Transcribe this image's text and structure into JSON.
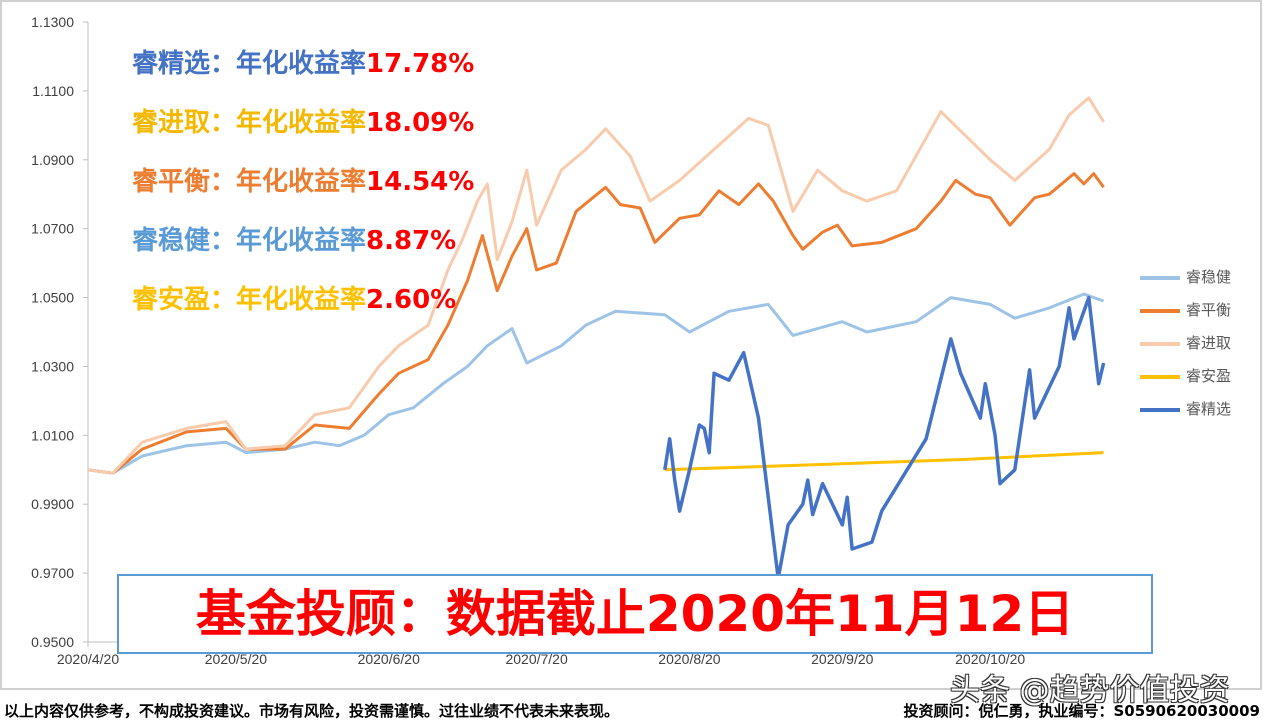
{
  "chart_data": {
    "type": "line",
    "ylim": [
      0.95,
      1.13
    ],
    "yticks": [
      "1.1300",
      "1.1100",
      "1.0900",
      "1.0700",
      "1.0500",
      "1.0300",
      "1.0100",
      "0.9900",
      "0.9700",
      "0.9500"
    ],
    "xticks": [
      "2020/4/20",
      "2020/5/20",
      "2020/6/20",
      "2020/7/20",
      "2020/8/20",
      "2020/9/20",
      "2020/10/20"
    ],
    "grid": false,
    "legend_position": "right",
    "series": [
      {
        "name": "睿稳健",
        "color": "#9dc3e6",
        "points": [
          [
            "2020-04-20",
            1.0
          ],
          [
            "2020-04-25",
            0.999
          ],
          [
            "2020-05-01",
            1.004
          ],
          [
            "2020-05-10",
            1.007
          ],
          [
            "2020-05-18",
            1.008
          ],
          [
            "2020-05-22",
            1.005
          ],
          [
            "2020-05-30",
            1.006
          ],
          [
            "2020-06-05",
            1.008
          ],
          [
            "2020-06-10",
            1.007
          ],
          [
            "2020-06-15",
            1.01
          ],
          [
            "2020-06-20",
            1.016
          ],
          [
            "2020-06-25",
            1.018
          ],
          [
            "2020-07-01",
            1.025
          ],
          [
            "2020-07-06",
            1.03
          ],
          [
            "2020-07-10",
            1.036
          ],
          [
            "2020-07-15",
            1.041
          ],
          [
            "2020-07-18",
            1.031
          ],
          [
            "2020-07-25",
            1.036
          ],
          [
            "2020-07-30",
            1.042
          ],
          [
            "2020-08-05",
            1.046
          ],
          [
            "2020-08-15",
            1.045
          ],
          [
            "2020-08-20",
            1.04
          ],
          [
            "2020-08-28",
            1.046
          ],
          [
            "2020-09-05",
            1.048
          ],
          [
            "2020-09-10",
            1.039
          ],
          [
            "2020-09-20",
            1.043
          ],
          [
            "2020-09-25",
            1.04
          ],
          [
            "2020-10-05",
            1.043
          ],
          [
            "2020-10-12",
            1.05
          ],
          [
            "2020-10-20",
            1.048
          ],
          [
            "2020-10-25",
            1.044
          ],
          [
            "2020-11-01",
            1.047
          ],
          [
            "2020-11-08",
            1.051
          ],
          [
            "2020-11-12",
            1.049
          ]
        ]
      },
      {
        "name": "睿平衡",
        "color": "#ed7d31",
        "points": [
          [
            "2020-04-20",
            1.0
          ],
          [
            "2020-04-25",
            0.999
          ],
          [
            "2020-05-01",
            1.006
          ],
          [
            "2020-05-10",
            1.011
          ],
          [
            "2020-05-18",
            1.012
          ],
          [
            "2020-05-22",
            1.006
          ],
          [
            "2020-05-30",
            1.006
          ],
          [
            "2020-06-05",
            1.013
          ],
          [
            "2020-06-12",
            1.012
          ],
          [
            "2020-06-18",
            1.022
          ],
          [
            "2020-06-22",
            1.028
          ],
          [
            "2020-06-28",
            1.032
          ],
          [
            "2020-07-02",
            1.042
          ],
          [
            "2020-07-06",
            1.055
          ],
          [
            "2020-07-09",
            1.068
          ],
          [
            "2020-07-12",
            1.052
          ],
          [
            "2020-07-15",
            1.062
          ],
          [
            "2020-07-18",
            1.07
          ],
          [
            "2020-07-20",
            1.058
          ],
          [
            "2020-07-24",
            1.06
          ],
          [
            "2020-07-28",
            1.075
          ],
          [
            "2020-08-03",
            1.082
          ],
          [
            "2020-08-06",
            1.077
          ],
          [
            "2020-08-10",
            1.076
          ],
          [
            "2020-08-13",
            1.066
          ],
          [
            "2020-08-18",
            1.073
          ],
          [
            "2020-08-22",
            1.074
          ],
          [
            "2020-08-26",
            1.081
          ],
          [
            "2020-08-30",
            1.077
          ],
          [
            "2020-09-03",
            1.083
          ],
          [
            "2020-09-06",
            1.078
          ],
          [
            "2020-09-10",
            1.068
          ],
          [
            "2020-09-12",
            1.064
          ],
          [
            "2020-09-16",
            1.069
          ],
          [
            "2020-09-19",
            1.071
          ],
          [
            "2020-09-22",
            1.065
          ],
          [
            "2020-09-28",
            1.066
          ],
          [
            "2020-10-05",
            1.07
          ],
          [
            "2020-10-10",
            1.078
          ],
          [
            "2020-10-13",
            1.084
          ],
          [
            "2020-10-17",
            1.08
          ],
          [
            "2020-10-20",
            1.079
          ],
          [
            "2020-10-24",
            1.071
          ],
          [
            "2020-10-29",
            1.079
          ],
          [
            "2020-11-01",
            1.08
          ],
          [
            "2020-11-06",
            1.086
          ],
          [
            "2020-11-08",
            1.083
          ],
          [
            "2020-11-10",
            1.086
          ],
          [
            "2020-11-12",
            1.082
          ]
        ]
      },
      {
        "name": "睿进取",
        "color": "#f8cbad",
        "points": [
          [
            "2020-04-20",
            1.0
          ],
          [
            "2020-04-25",
            0.999
          ],
          [
            "2020-05-01",
            1.008
          ],
          [
            "2020-05-10",
            1.012
          ],
          [
            "2020-05-18",
            1.014
          ],
          [
            "2020-05-22",
            1.006
          ],
          [
            "2020-05-30",
            1.007
          ],
          [
            "2020-06-05",
            1.016
          ],
          [
            "2020-06-12",
            1.018
          ],
          [
            "2020-06-18",
            1.03
          ],
          [
            "2020-06-22",
            1.036
          ],
          [
            "2020-06-28",
            1.042
          ],
          [
            "2020-07-02",
            1.058
          ],
          [
            "2020-07-05",
            1.067
          ],
          [
            "2020-07-08",
            1.078
          ],
          [
            "2020-07-10",
            1.083
          ],
          [
            "2020-07-12",
            1.061
          ],
          [
            "2020-07-15",
            1.072
          ],
          [
            "2020-07-18",
            1.087
          ],
          [
            "2020-07-20",
            1.071
          ],
          [
            "2020-07-25",
            1.087
          ],
          [
            "2020-07-30",
            1.093
          ],
          [
            "2020-08-03",
            1.099
          ],
          [
            "2020-08-08",
            1.091
          ],
          [
            "2020-08-12",
            1.078
          ],
          [
            "2020-08-18",
            1.084
          ],
          [
            "2020-08-25",
            1.093
          ],
          [
            "2020-09-01",
            1.102
          ],
          [
            "2020-09-05",
            1.1
          ],
          [
            "2020-09-10",
            1.075
          ],
          [
            "2020-09-15",
            1.087
          ],
          [
            "2020-09-20",
            1.081
          ],
          [
            "2020-09-25",
            1.078
          ],
          [
            "2020-10-01",
            1.081
          ],
          [
            "2020-10-10",
            1.104
          ],
          [
            "2020-10-15",
            1.097
          ],
          [
            "2020-10-20",
            1.09
          ],
          [
            "2020-10-25",
            1.084
          ],
          [
            "2020-11-01",
            1.093
          ],
          [
            "2020-11-05",
            1.103
          ],
          [
            "2020-11-09",
            1.108
          ],
          [
            "2020-11-12",
            1.101
          ]
        ]
      },
      {
        "name": "睿安盈",
        "color": "#ffc000",
        "points": [
          [
            "2020-08-15",
            1.0
          ],
          [
            "2020-09-15",
            1.0015
          ],
          [
            "2020-10-15",
            1.003
          ],
          [
            "2020-11-12",
            1.005
          ]
        ]
      },
      {
        "name": "睿精选",
        "color": "#4472c4",
        "points": [
          [
            "2020-08-15",
            1.0
          ],
          [
            "2020-08-16",
            1.009
          ],
          [
            "2020-08-17",
            0.997
          ],
          [
            "2020-08-18",
            0.988
          ],
          [
            "2020-08-20",
            1.0
          ],
          [
            "2020-08-22",
            1.013
          ],
          [
            "2020-08-23",
            1.012
          ],
          [
            "2020-08-24",
            1.005
          ],
          [
            "2020-08-25",
            1.028
          ],
          [
            "2020-08-28",
            1.026
          ],
          [
            "2020-08-31",
            1.034
          ],
          [
            "2020-09-03",
            1.015
          ],
          [
            "2020-09-07",
            0.9685
          ],
          [
            "2020-09-09",
            0.984
          ],
          [
            "2020-09-12",
            0.99
          ],
          [
            "2020-09-13",
            0.997
          ],
          [
            "2020-09-14",
            0.987
          ],
          [
            "2020-09-16",
            0.996
          ],
          [
            "2020-09-20",
            0.984
          ],
          [
            "2020-09-21",
            0.992
          ],
          [
            "2020-09-22",
            0.977
          ],
          [
            "2020-09-26",
            0.979
          ],
          [
            "2020-09-28",
            0.988
          ],
          [
            "2020-10-07",
            1.009
          ],
          [
            "2020-10-12",
            1.038
          ],
          [
            "2020-10-14",
            1.028
          ],
          [
            "2020-10-18",
            1.015
          ],
          [
            "2020-10-19",
            1.025
          ],
          [
            "2020-10-21",
            1.01
          ],
          [
            "2020-10-22",
            0.996
          ],
          [
            "2020-10-25",
            1.0
          ],
          [
            "2020-10-28",
            1.029
          ],
          [
            "2020-10-29",
            1.015
          ],
          [
            "2020-11-03",
            1.03
          ],
          [
            "2020-11-05",
            1.047
          ],
          [
            "2020-11-06",
            1.038
          ],
          [
            "2020-11-09",
            1.05
          ],
          [
            "2020-11-11",
            1.025
          ],
          [
            "2020-11-12",
            1.031
          ]
        ]
      }
    ]
  },
  "annotations": [
    {
      "name": "睿精选",
      "text": "：年化收益率",
      "pct": "17.78%",
      "color": "#4472c4"
    },
    {
      "name": "睿进取",
      "text": "：年化收益率",
      "pct": "18.09%",
      "color": "#f5b800"
    },
    {
      "name": "睿平衡",
      "text": "：年化收益率",
      "pct": "14.54%",
      "color": "#ed7d31"
    },
    {
      "name": "睿稳健",
      "text": "：年化收益率",
      "pct": "8.87%",
      "color": "#5b9bd5"
    },
    {
      "name": "睿安盈",
      "text": "：年化收益率",
      "pct": "2.60%",
      "color": "#ffc000"
    }
  ],
  "banner": "基金投顾：数据截止2020年11月12日",
  "footer_left": "以上内容仅供参考，不构成投资建议。市场有风险，投资需谨慎。过往业绩不代表未来表现。",
  "footer_right": "投资顾问：倪仁勇，执业编号：S0590620030009",
  "watermark": "头条 @趋势价值投资"
}
